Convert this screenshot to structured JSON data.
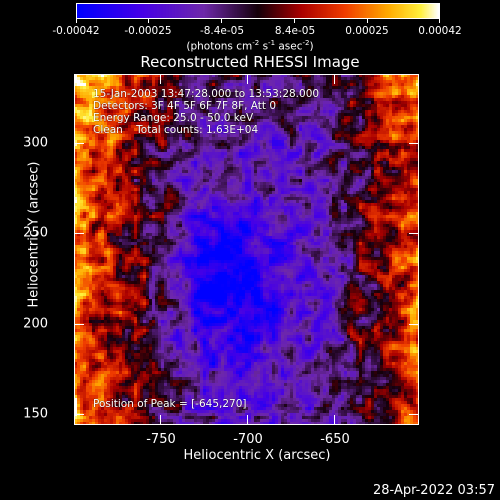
{
  "colorbar": {
    "tick_labels": [
      "-0.00042",
      "-0.00025",
      "-8.4e-05",
      "8.4e-05",
      "0.00025",
      "0.00042"
    ],
    "units_main": "(photons cm",
    "units_exp1": "-2",
    "units_mid1": " s",
    "units_exp2": "-1",
    "units_mid2": " asec",
    "units_exp3": "-2",
    "units_end": ")"
  },
  "title": "Reconstructed RHESSI Image",
  "overlay": {
    "line1": "15-Jan-2003 13:47:28.000 to 13:53:28.000",
    "line2": "Detectors: 3F 4F 5F 6F 7F 8F, Att 0",
    "line3": "Energy Range: 25.0 - 50.0 keV",
    "line4": "Clean    Total counts: 1.63E+04",
    "peak": "Position of Peak = [-645,270]"
  },
  "axes": {
    "xlabel": "Heliocentric X (arcsec)",
    "ylabel": "Heliocentric Y (arcsec)",
    "xticks": [
      "-750",
      "-700",
      "-650"
    ],
    "yticks": [
      "300",
      "250",
      "200",
      "150"
    ]
  },
  "timestamp": "28-Apr-2022 03:57"
}
